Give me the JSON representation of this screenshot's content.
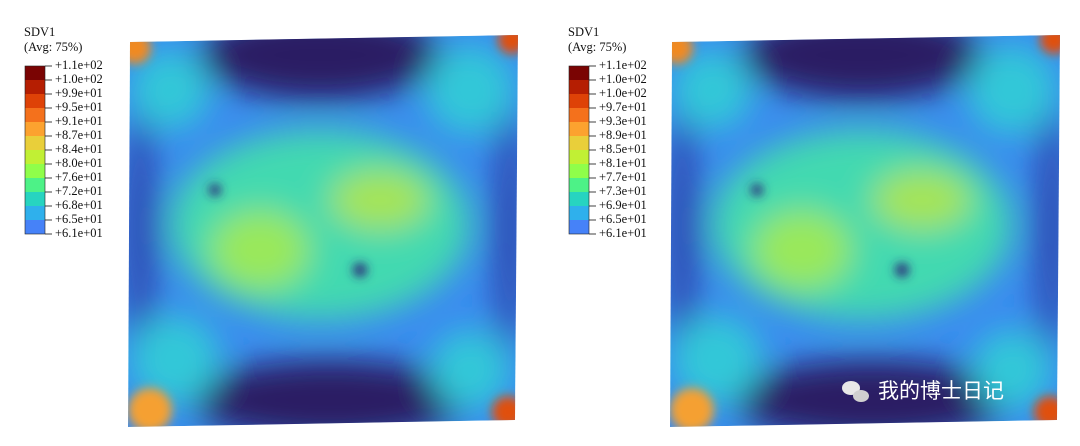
{
  "panels": [
    {
      "legend": {
        "title": "SDV1",
        "subtitle": "(Avg: 75%)",
        "labels": [
          "+1.1e+02",
          "+1.0e+02",
          "+9.9e+01",
          "+9.5e+01",
          "+9.1e+01",
          "+8.7e+01",
          "+8.4e+01",
          "+8.0e+01",
          "+7.6e+01",
          "+7.2e+01",
          "+6.8e+01",
          "+6.5e+01",
          "+6.1e+01"
        ]
      }
    },
    {
      "legend": {
        "title": "SDV1",
        "subtitle": "(Avg: 75%)",
        "labels": [
          "+1.1e+02",
          "+1.0e+02",
          "+1.0e+02",
          "+9.7e+01",
          "+9.3e+01",
          "+8.9e+01",
          "+8.5e+01",
          "+8.1e+01",
          "+7.7e+01",
          "+7.3e+01",
          "+6.9e+01",
          "+6.5e+01",
          "+6.1e+01"
        ]
      }
    }
  ],
  "legend_colors": [
    "#7a0403",
    "#b51e02",
    "#de4207",
    "#f4711c",
    "#fca22f",
    "#e9cf3a",
    "#c1f034",
    "#8ffe4a",
    "#4df287",
    "#27d4c0",
    "#2fb0ec",
    "#4682f8",
    "#3d3a99"
  ],
  "watermark": "我的博士日记"
}
